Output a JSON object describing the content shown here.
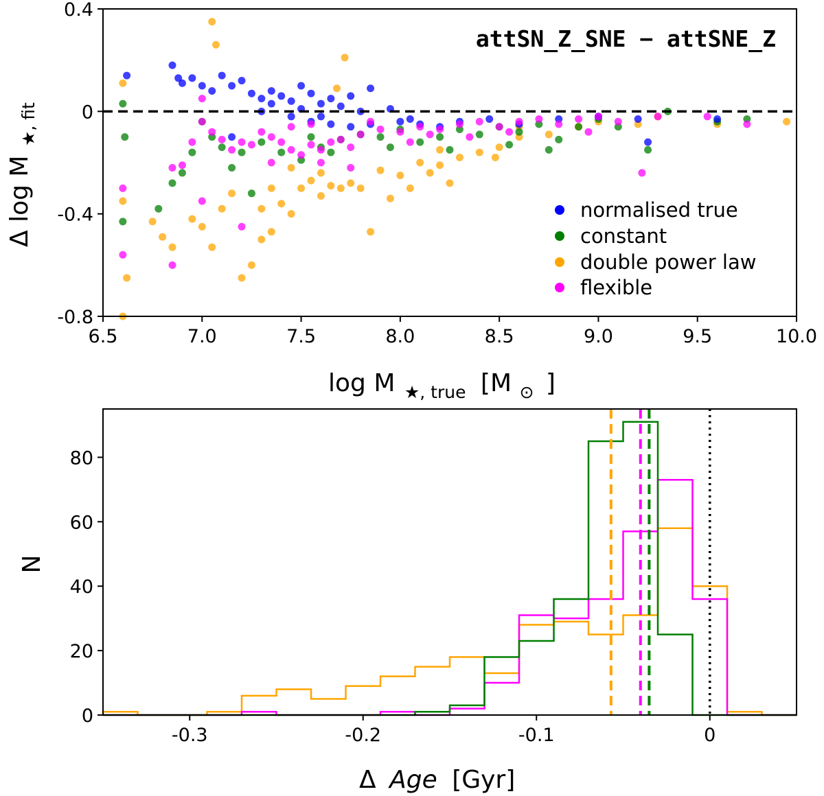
{
  "colors": {
    "normalised_true": "#0000ff",
    "constant": "#007f00",
    "double_power_law": "#ffa500",
    "flexible": "#ff00ff"
  },
  "chart_data": [
    {
      "type": "scatter",
      "title": "attSN_Z_SNE − attSNE_Z",
      "xlabel": "log M",
      "xlabel_subscript": "★, true",
      "xlabel_unit": "[M",
      "xlabel_unit_sub": "⊙",
      "xlabel_unit_close": "]",
      "ylabel": "Δ log M",
      "ylabel_subscript": "★, fit",
      "xlim": [
        6.5,
        10.0
      ],
      "ylim": [
        -0.8,
        0.4
      ],
      "xticks": [
        "6.5",
        "7.0",
        "7.5",
        "8.0",
        "8.5",
        "9.0",
        "9.5",
        "10.0"
      ],
      "yticks": [
        "-0.8",
        "-0.4",
        "0",
        "0.4"
      ],
      "reference_line": {
        "y": 0,
        "style": "dashed",
        "color": "#000000"
      },
      "legend_position": "lower-right",
      "series": [
        {
          "name": "normalised true",
          "color": "#0000ff",
          "points": [
            [
              6.62,
              0.14
            ],
            [
              6.85,
              0.18
            ],
            [
              6.88,
              0.13
            ],
            [
              6.9,
              0.11
            ],
            [
              6.95,
              0.13
            ],
            [
              7.0,
              0.1
            ],
            [
              7.05,
              0.08
            ],
            [
              7.1,
              0.14
            ],
            [
              7.15,
              0.1
            ],
            [
              7.2,
              0.12
            ],
            [
              7.25,
              0.07
            ],
            [
              7.3,
              0.05
            ],
            [
              7.35,
              0.08
            ],
            [
              7.4,
              0.06
            ],
            [
              7.45,
              0.04
            ],
            [
              7.5,
              0.1
            ],
            [
              7.55,
              0.07
            ],
            [
              7.6,
              0.03
            ],
            [
              7.65,
              0.05
            ],
            [
              7.7,
              0.02
            ],
            [
              7.75,
              0.06
            ],
            [
              7.85,
              0.09
            ],
            [
              7.95,
              0.01
            ],
            [
              7.3,
              0.0
            ],
            [
              7.45,
              -0.02
            ],
            [
              7.55,
              -0.04
            ],
            [
              7.65,
              -0.05
            ],
            [
              7.75,
              -0.06
            ],
            [
              7.85,
              -0.05
            ],
            [
              8.0,
              -0.04
            ],
            [
              8.1,
              -0.05
            ],
            [
              8.2,
              -0.06
            ],
            [
              8.3,
              -0.04
            ],
            [
              8.45,
              -0.03
            ],
            [
              8.6,
              -0.05
            ],
            [
              8.8,
              -0.03
            ],
            [
              9.0,
              -0.02
            ],
            [
              9.2,
              -0.03
            ],
            [
              9.25,
              -0.12
            ],
            [
              9.6,
              -0.03
            ],
            [
              7.15,
              -0.1
            ],
            [
              7.6,
              -0.02
            ],
            [
              7.8,
              0.0
            ],
            [
              8.05,
              -0.03
            ],
            [
              7.35,
              0.03
            ],
            [
              7.5,
              0.01
            ]
          ]
        },
        {
          "name": "constant",
          "color": "#007f00",
          "points": [
            [
              6.6,
              0.03
            ],
            [
              6.61,
              -0.1
            ],
            [
              6.6,
              -0.43
            ],
            [
              6.78,
              -0.38
            ],
            [
              6.85,
              -0.28
            ],
            [
              6.9,
              -0.24
            ],
            [
              6.95,
              -0.16
            ],
            [
              7.0,
              -0.04
            ],
            [
              7.05,
              -0.1
            ],
            [
              7.1,
              -0.14
            ],
            [
              7.15,
              -0.22
            ],
            [
              7.2,
              -0.16
            ],
            [
              7.3,
              -0.12
            ],
            [
              7.4,
              -0.16
            ],
            [
              7.5,
              -0.19
            ],
            [
              7.6,
              -0.14
            ],
            [
              7.7,
              -0.11
            ],
            [
              7.8,
              -0.09
            ],
            [
              7.9,
              -0.1
            ],
            [
              8.0,
              -0.07
            ],
            [
              8.1,
              -0.12
            ],
            [
              8.2,
              -0.1
            ],
            [
              8.3,
              -0.07
            ],
            [
              8.4,
              -0.09
            ],
            [
              8.5,
              -0.06
            ],
            [
              8.6,
              -0.08
            ],
            [
              8.7,
              -0.05
            ],
            [
              8.8,
              -0.11
            ],
            [
              8.9,
              -0.06
            ],
            [
              9.0,
              -0.03
            ],
            [
              9.1,
              -0.06
            ],
            [
              9.25,
              -0.15
            ],
            [
              9.35,
              0.0
            ],
            [
              9.6,
              -0.04
            ],
            [
              9.75,
              -0.03
            ],
            [
              7.25,
              -0.32
            ],
            [
              7.55,
              -0.1
            ],
            [
              7.95,
              -0.14
            ],
            [
              8.25,
              -0.15
            ],
            [
              8.55,
              -0.13
            ],
            [
              8.75,
              -0.15
            ],
            [
              7.65,
              -0.16
            ]
          ]
        },
        {
          "name": "double power law",
          "color": "#ffa500",
          "points": [
            [
              6.6,
              0.11
            ],
            [
              6.6,
              -0.35
            ],
            [
              6.62,
              -0.65
            ],
            [
              6.6,
              -0.8
            ],
            [
              6.75,
              -0.43
            ],
            [
              6.8,
              -0.49
            ],
            [
              6.85,
              -0.53
            ],
            [
              6.95,
              -0.42
            ],
            [
              7.0,
              -0.45
            ],
            [
              7.05,
              0.35
            ],
            [
              7.07,
              0.26
            ],
            [
              7.05,
              -0.53
            ],
            [
              7.1,
              -0.38
            ],
            [
              7.15,
              -0.32
            ],
            [
              7.2,
              -0.65
            ],
            [
              7.25,
              -0.6
            ],
            [
              7.3,
              -0.5
            ],
            [
              7.35,
              -0.47
            ],
            [
              7.4,
              -0.36
            ],
            [
              7.45,
              -0.4
            ],
            [
              7.5,
              -0.3
            ],
            [
              7.55,
              -0.27
            ],
            [
              7.6,
              -0.33
            ],
            [
              7.65,
              -0.29
            ],
            [
              7.7,
              -0.3
            ],
            [
              7.72,
              0.21
            ],
            [
              7.68,
              0.09
            ],
            [
              7.75,
              -0.28
            ],
            [
              7.8,
              -0.3
            ],
            [
              7.85,
              -0.47
            ],
            [
              7.9,
              -0.23
            ],
            [
              8.0,
              -0.25
            ],
            [
              8.05,
              -0.3
            ],
            [
              8.1,
              -0.2
            ],
            [
              8.2,
              -0.21
            ],
            [
              8.3,
              -0.18
            ],
            [
              8.4,
              -0.16
            ],
            [
              8.5,
              -0.14
            ],
            [
              8.6,
              -0.1
            ],
            [
              8.75,
              -0.09
            ],
            [
              8.9,
              -0.06
            ],
            [
              9.0,
              -0.04
            ],
            [
              9.2,
              -0.05
            ],
            [
              9.3,
              -0.02
            ],
            [
              9.6,
              -0.05
            ],
            [
              9.95,
              -0.04
            ],
            [
              8.15,
              -0.24
            ],
            [
              7.45,
              -0.22
            ],
            [
              7.35,
              -0.3
            ],
            [
              7.6,
              -0.24
            ],
            [
              8.48,
              -0.18
            ],
            [
              8.2,
              -0.15
            ],
            [
              8.6,
              -0.06
            ],
            [
              7.95,
              -0.34
            ],
            [
              8.25,
              -0.28
            ],
            [
              7.3,
              -0.38
            ]
          ]
        },
        {
          "name": "flexible",
          "color": "#ff00ff",
          "points": [
            [
              6.6,
              -0.3
            ],
            [
              6.6,
              -0.56
            ],
            [
              6.85,
              -0.6
            ],
            [
              6.85,
              -0.22
            ],
            [
              6.9,
              -0.21
            ],
            [
              6.95,
              -0.12
            ],
            [
              7.0,
              -0.04
            ],
            [
              7.0,
              0.05
            ],
            [
              7.05,
              -0.08
            ],
            [
              7.1,
              -0.11
            ],
            [
              7.15,
              -0.15
            ],
            [
              7.2,
              -0.12
            ],
            [
              7.25,
              -0.13
            ],
            [
              7.3,
              -0.08
            ],
            [
              7.35,
              -0.1
            ],
            [
              7.4,
              -0.12
            ],
            [
              7.45,
              -0.15
            ],
            [
              7.5,
              -0.17
            ],
            [
              7.55,
              -0.13
            ],
            [
              7.6,
              -0.15
            ],
            [
              7.65,
              -0.12
            ],
            [
              7.7,
              -0.11
            ],
            [
              7.75,
              -0.14
            ],
            [
              7.8,
              -0.09
            ],
            [
              7.9,
              -0.07
            ],
            [
              8.0,
              -0.08
            ],
            [
              8.1,
              -0.06
            ],
            [
              8.2,
              -0.07
            ],
            [
              8.3,
              -0.05
            ],
            [
              8.4,
              -0.04
            ],
            [
              8.5,
              -0.06
            ],
            [
              8.6,
              -0.04
            ],
            [
              8.7,
              -0.03
            ],
            [
              8.8,
              -0.05
            ],
            [
              8.9,
              -0.03
            ],
            [
              9.0,
              -0.02
            ],
            [
              9.1,
              -0.04
            ],
            [
              9.22,
              -0.24
            ],
            [
              9.3,
              -0.02
            ],
            [
              9.55,
              -0.02
            ],
            [
              9.75,
              -0.05
            ],
            [
              7.0,
              -0.35
            ],
            [
              7.2,
              -0.45
            ],
            [
              7.35,
              -0.2
            ],
            [
              7.6,
              -0.2
            ],
            [
              7.75,
              -0.22
            ],
            [
              8.05,
              -0.12
            ],
            [
              8.15,
              -0.09
            ],
            [
              8.35,
              -0.1
            ],
            [
              8.55,
              -0.08
            ],
            [
              8.95,
              -0.08
            ],
            [
              7.45,
              -0.06
            ],
            [
              7.55,
              -0.05
            ],
            [
              7.85,
              -0.04
            ]
          ]
        }
      ]
    },
    {
      "type": "histogram",
      "xlabel": "Δ",
      "xlabel_italic": "Age",
      "xlabel_unit": "[Gyr]",
      "ylabel": "N",
      "xlim": [
        -0.35,
        0.05
      ],
      "ylim": [
        0,
        95
      ],
      "xticks": [
        "-0.3",
        "-0.2",
        "-0.1",
        "0"
      ],
      "yticks": [
        "0",
        "20",
        "40",
        "60",
        "80"
      ],
      "bin_edges": [
        -0.35,
        -0.33,
        -0.31,
        -0.29,
        -0.27,
        -0.25,
        -0.23,
        -0.21,
        -0.19,
        -0.17,
        -0.15,
        -0.13,
        -0.11,
        -0.09,
        -0.07,
        -0.05,
        -0.03,
        -0.01,
        0.01,
        0.03,
        0.05
      ],
      "series": [
        {
          "name": "double power law",
          "color": "#ffa500",
          "counts": [
            1,
            0,
            0,
            1,
            6,
            8,
            5,
            9,
            12,
            15,
            18,
            13,
            28,
            29,
            25,
            31,
            58,
            40,
            1,
            0
          ],
          "median": -0.057
        },
        {
          "name": "flexible",
          "color": "#ff00ff",
          "counts": [
            0,
            0,
            0,
            0,
            1,
            0,
            0,
            0,
            1,
            0,
            2,
            10,
            31,
            30,
            36,
            57,
            73,
            36,
            0,
            0
          ],
          "median": -0.04
        },
        {
          "name": "constant",
          "color": "#007f00",
          "counts": [
            0,
            0,
            0,
            0,
            0,
            0,
            0,
            0,
            0,
            1,
            3,
            18,
            23,
            36,
            85,
            91,
            25,
            0,
            0,
            0
          ],
          "median": -0.035
        }
      ],
      "reference_line": {
        "x": 0,
        "style": "dotted",
        "color": "#000000"
      }
    }
  ]
}
